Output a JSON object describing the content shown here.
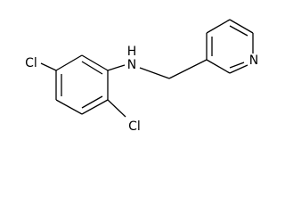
{
  "nodes": [
    {
      "label": "Cl"
    },
    {
      "label": "Cl"
    },
    {
      "label": "N"
    },
    {
      "label": "H"
    },
    {
      "label": "N"
    }
  ]
}
